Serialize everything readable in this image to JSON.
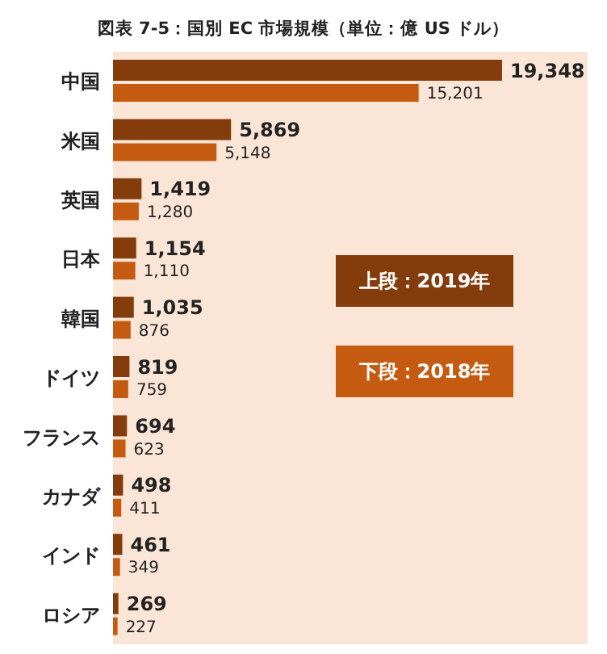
{
  "chart_data": {
    "type": "bar",
    "orientation": "horizontal",
    "title": "図表 7-5：国別 EC 市場規模（単位：億 US ドル）",
    "categories": [
      "中国",
      "米国",
      "英国",
      "日本",
      "韓国",
      "ドイツ",
      "フランス",
      "カナダ",
      "インド",
      "ロシア"
    ],
    "series": [
      {
        "name": "上段：2019年",
        "color": "#843c0c",
        "values": [
          19348,
          5869,
          1419,
          1154,
          1035,
          819,
          694,
          498,
          461,
          269
        ],
        "value_labels": [
          "19,348",
          "5,869",
          "1,419",
          "1,154",
          "1,035",
          "819",
          "694",
          "498",
          "461",
          "269"
        ]
      },
      {
        "name": "下段：2018年",
        "color": "#c55a11",
        "values": [
          15201,
          5148,
          1280,
          1110,
          876,
          759,
          623,
          411,
          349,
          227
        ],
        "value_labels": [
          "15,201",
          "5,148",
          "1,280",
          "1,110",
          "876",
          "759",
          "623",
          "411",
          "349",
          "227"
        ]
      }
    ],
    "legend": "right",
    "grid": false
  }
}
